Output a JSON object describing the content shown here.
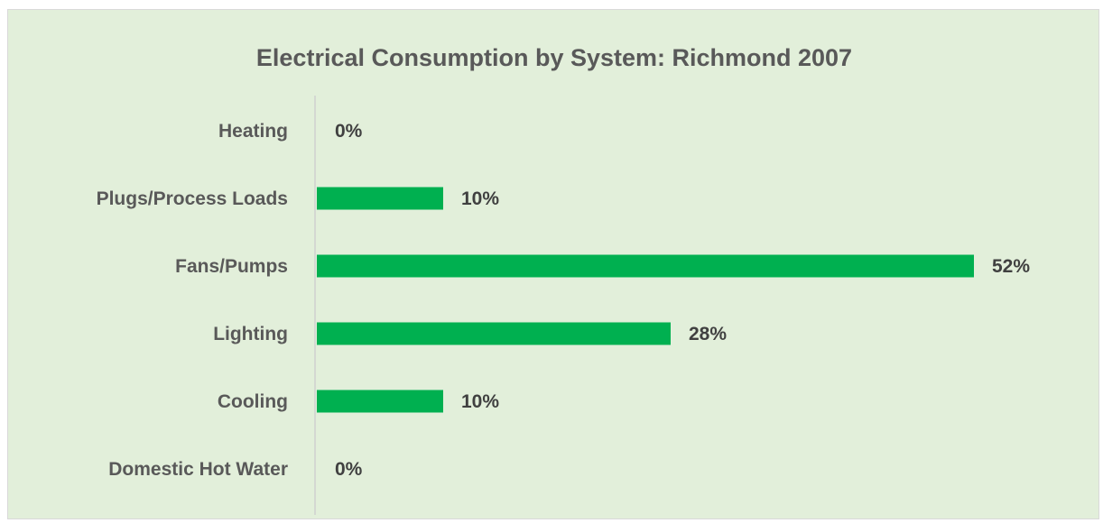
{
  "chart_data": {
    "type": "bar",
    "orientation": "horizontal",
    "title": "Electrical Consumption by System: Richmond 2007",
    "categories": [
      "Heating",
      "Plugs/Process Loads",
      "Fans/Pumps",
      "Lighting",
      "Cooling",
      "Domestic Hot Water"
    ],
    "values": [
      0,
      10,
      52,
      28,
      10,
      0
    ],
    "value_labels": [
      "0%",
      "10%",
      "52%",
      "28%",
      "10%",
      "0%"
    ],
    "unit": "%",
    "xlim": [
      0,
      52
    ],
    "grid": false,
    "legend": "none",
    "bar_color": "#00b050",
    "background_color": "#e2efda"
  }
}
